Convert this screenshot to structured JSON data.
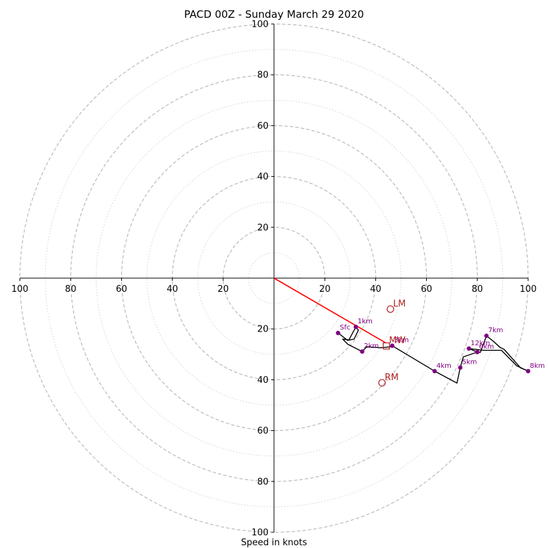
{
  "chart_data": {
    "type": "line",
    "title": "PACD 00Z - Sunday March 29 2020",
    "xlabel": "Speed in knots",
    "ylabel": "",
    "xlim": [
      -100,
      100
    ],
    "ylim": [
      -100,
      100
    ],
    "grid": true,
    "rings_major": [
      20,
      40,
      60,
      80,
      100
    ],
    "rings_minor": [
      10,
      30,
      50,
      70,
      90
    ],
    "x_ticks": [
      {
        "value": -100,
        "label": "100"
      },
      {
        "value": -80,
        "label": "80"
      },
      {
        "value": -60,
        "label": "60"
      },
      {
        "value": -40,
        "label": "40"
      },
      {
        "value": -20,
        "label": "20"
      },
      {
        "value": 20,
        "label": "20"
      },
      {
        "value": 40,
        "label": "40"
      },
      {
        "value": 60,
        "label": "60"
      },
      {
        "value": 80,
        "label": "80"
      },
      {
        "value": 100,
        "label": "100"
      }
    ],
    "y_ticks": [
      {
        "value": 100,
        "label": "100"
      },
      {
        "value": 80,
        "label": "80"
      },
      {
        "value": 60,
        "label": "60"
      },
      {
        "value": 40,
        "label": "40"
      },
      {
        "value": 20,
        "label": "20"
      },
      {
        "value": -20,
        "label": "20"
      },
      {
        "value": -40,
        "label": "40"
      },
      {
        "value": -60,
        "label": "60"
      },
      {
        "value": -80,
        "label": "80"
      },
      {
        "value": -100,
        "label": "100"
      }
    ],
    "hodograph": {
      "color": "#000000",
      "points": [
        [
          25.2,
          -21.6
        ],
        [
          29,
          -24.5
        ],
        [
          31.5,
          -24
        ],
        [
          33.2,
          -20.5
        ],
        [
          32.2,
          -19.2
        ],
        [
          29.5,
          -24.3
        ],
        [
          27,
          -24
        ],
        [
          29,
          -26
        ],
        [
          34.7,
          -28.9
        ],
        [
          36.5,
          -27
        ],
        [
          42,
          -27.4
        ],
        [
          46.2,
          -27
        ],
        [
          46.5,
          -26.6
        ],
        [
          63.2,
          -36.6
        ],
        [
          72,
          -41.3
        ],
        [
          73.3,
          -35.2
        ],
        [
          74.5,
          -31
        ],
        [
          80,
          -29.1
        ],
        [
          81.2,
          -29.2
        ],
        [
          82,
          -27
        ],
        [
          83.6,
          -22.7
        ],
        [
          86.5,
          -25
        ],
        [
          89,
          -27.3
        ],
        [
          90.5,
          -28
        ],
        [
          97,
          -35.3
        ],
        [
          100,
          -36.6
        ],
        [
          95.5,
          -34.5
        ],
        [
          89.5,
          -28.4
        ],
        [
          82.5,
          -28.4
        ],
        [
          76.7,
          -27.7
        ],
        [
          78.5,
          -28.5
        ],
        [
          80,
          -29.1
        ]
      ]
    },
    "levels": [
      {
        "label": "Sfc",
        "x": 25.2,
        "y": -21.6
      },
      {
        "label": "1km",
        "x": 32.2,
        "y": -19.2
      },
      {
        "label": "2km",
        "x": 34.7,
        "y": -28.9
      },
      {
        "label": "3km",
        "x": 46.5,
        "y": -26.6
      },
      {
        "label": "4km",
        "x": 63.2,
        "y": -36.6
      },
      {
        "label": "5km",
        "x": 73.3,
        "y": -35.2
      },
      {
        "label": "6km",
        "x": 80,
        "y": -29.1
      },
      {
        "label": "7km",
        "x": 83.6,
        "y": -22.7
      },
      {
        "label": "8km",
        "x": 100,
        "y": -36.6
      },
      {
        "label": "12km",
        "x": 76.7,
        "y": -27.7
      }
    ],
    "level_color": "#800080",
    "mean_wind_vector": {
      "color": "#ff0000",
      "from": [
        0,
        0
      ],
      "to": [
        44,
        -25.5
      ]
    },
    "storm_motions": [
      {
        "label": "LM",
        "x": 45.8,
        "y": -12.2,
        "marker": "circle"
      },
      {
        "label": "RM",
        "x": 42.5,
        "y": -41.2,
        "marker": "circle"
      },
      {
        "label": "MW",
        "x": 44.2,
        "y": -26.7,
        "marker": "square"
      }
    ],
    "storm_motion_color": "#b22222"
  }
}
